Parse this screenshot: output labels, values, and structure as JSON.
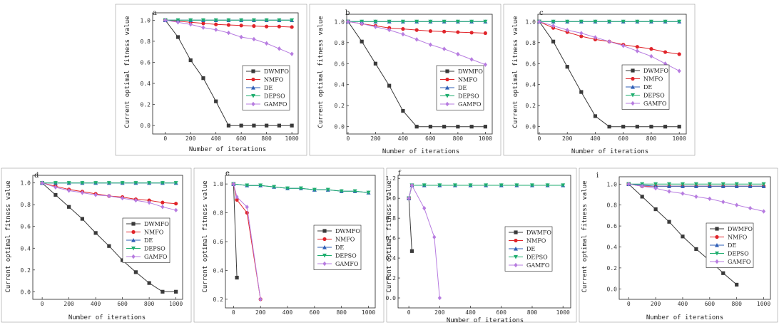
{
  "series_styles": [
    {
      "name": "DWMFO",
      "color": "#3a3a3a",
      "marker": "square"
    },
    {
      "name": "NMFO",
      "color": "#e0242a",
      "marker": "circle"
    },
    {
      "name": "DE",
      "color": "#2f5fb7",
      "marker": "triangle-up"
    },
    {
      "name": "DEPSO",
      "color": "#1fae6f",
      "marker": "triangle-down"
    },
    {
      "name": "GAMFO",
      "color": "#b77ce0",
      "marker": "diamond"
    }
  ],
  "chart_data": [
    {
      "type": "line",
      "label": "a",
      "xlabel": "Number of iterations",
      "ylabel": "Current optimal fitness value",
      "xlim": [
        -100,
        1050
      ],
      "ylim": [
        -0.08,
        1.07
      ],
      "xticks": [
        0,
        200,
        400,
        600,
        800,
        1000
      ],
      "yticks": [
        0.0,
        0.2,
        0.4,
        0.6,
        0.8,
        1.0
      ],
      "xtick_labels": [
        "0",
        "200",
        "400",
        "600",
        "800",
        "1000"
      ],
      "ytick_labels": [
        "0.0",
        "0.2",
        "0.4",
        "0.6",
        "0.8",
        "1.0"
      ],
      "legend_position": "center-right",
      "x": [
        0,
        100,
        200,
        300,
        400,
        500,
        600,
        700,
        800,
        900,
        1000
      ],
      "series": [
        {
          "name": "DWMFO",
          "values": [
            1.0,
            0.84,
            0.62,
            0.45,
            0.23,
            0.0,
            0.0,
            0.0,
            0.0,
            0.0,
            0.0
          ]
        },
        {
          "name": "NMFO",
          "values": [
            1.0,
            0.99,
            0.98,
            0.97,
            0.96,
            0.955,
            0.95,
            0.945,
            0.94,
            0.94,
            0.935
          ]
        },
        {
          "name": "DE",
          "values": [
            1.0,
            1.0,
            1.0,
            1.0,
            1.0,
            1.0,
            1.0,
            1.0,
            1.0,
            1.0,
            1.0
          ]
        },
        {
          "name": "DEPSO",
          "values": [
            1.0,
            1.0,
            1.0,
            1.0,
            1.0,
            1.0,
            1.0,
            1.0,
            1.0,
            1.0,
            1.0
          ]
        },
        {
          "name": "GAMFO",
          "values": [
            1.0,
            0.98,
            0.96,
            0.93,
            0.91,
            0.88,
            0.84,
            0.82,
            0.78,
            0.73,
            0.68
          ]
        }
      ]
    },
    {
      "type": "line",
      "label": "b",
      "xlabel": "Number of iterations",
      "ylabel": "Current optimal fitness value",
      "xlim": [
        -10,
        1050
      ],
      "ylim": [
        -0.07,
        1.07
      ],
      "xticks": [
        0,
        200,
        400,
        600,
        800,
        1000
      ],
      "yticks": [
        0.0,
        0.2,
        0.4,
        0.6,
        0.8,
        1.0
      ],
      "xtick_labels": [
        "0",
        "200",
        "400",
        "600",
        "800",
        "1000"
      ],
      "ytick_labels": [
        "0.0",
        "0.2",
        "0.4",
        "0.6",
        "0.8",
        "1.0"
      ],
      "legend_position": "center-right",
      "x": [
        0,
        100,
        200,
        300,
        400,
        500,
        600,
        700,
        800,
        900,
        1000
      ],
      "series": [
        {
          "name": "DWMFO",
          "values": [
            1.0,
            0.81,
            0.6,
            0.39,
            0.15,
            0.0,
            0.0,
            0.0,
            0.0,
            0.0,
            0.0
          ]
        },
        {
          "name": "NMFO",
          "values": [
            1.0,
            0.98,
            0.96,
            0.94,
            0.93,
            0.92,
            0.91,
            0.905,
            0.9,
            0.895,
            0.89
          ]
        },
        {
          "name": "DE",
          "values": [
            1.0,
            1.0,
            1.0,
            1.0,
            1.0,
            1.0,
            1.0,
            1.0,
            1.0,
            1.0,
            1.0
          ]
        },
        {
          "name": "DEPSO",
          "values": [
            1.0,
            1.0,
            1.0,
            1.0,
            1.0,
            1.0,
            1.0,
            1.0,
            1.0,
            1.0,
            1.0
          ]
        },
        {
          "name": "GAMFO",
          "values": [
            1.0,
            0.98,
            0.95,
            0.92,
            0.88,
            0.83,
            0.78,
            0.74,
            0.69,
            0.64,
            0.59
          ]
        }
      ]
    },
    {
      "type": "line",
      "label": "c",
      "xlabel": "Number of iterations",
      "ylabel": "Current optimal fitness value",
      "xlim": [
        -10,
        1050
      ],
      "ylim": [
        -0.07,
        1.07
      ],
      "xticks": [
        0,
        200,
        400,
        600,
        800,
        1000
      ],
      "yticks": [
        0.0,
        0.2,
        0.4,
        0.6,
        0.8,
        1.0
      ],
      "xtick_labels": [
        "0",
        "200",
        "400",
        "600",
        "800",
        "1000"
      ],
      "ytick_labels": [
        "0.0",
        "0.2",
        "0.4",
        "0.6",
        "0.8",
        "1.0"
      ],
      "legend_position": "center-right",
      "x": [
        0,
        100,
        200,
        300,
        400,
        500,
        600,
        700,
        800,
        900,
        1000
      ],
      "series": [
        {
          "name": "DWMFO",
          "values": [
            1.0,
            0.81,
            0.57,
            0.33,
            0.1,
            0.0,
            0.0,
            0.0,
            0.0,
            0.0,
            0.0
          ]
        },
        {
          "name": "NMFO",
          "values": [
            1.0,
            0.94,
            0.9,
            0.86,
            0.83,
            0.81,
            0.78,
            0.76,
            0.74,
            0.71,
            0.69
          ]
        },
        {
          "name": "DE",
          "values": [
            1.0,
            1.0,
            1.0,
            1.0,
            1.0,
            1.0,
            1.0,
            1.0,
            1.0,
            1.0,
            1.0
          ]
        },
        {
          "name": "DEPSO",
          "values": [
            1.0,
            1.0,
            1.0,
            1.0,
            1.0,
            1.0,
            1.0,
            1.0,
            1.0,
            1.0,
            1.0
          ]
        },
        {
          "name": "GAMFO",
          "values": [
            1.0,
            0.96,
            0.92,
            0.89,
            0.85,
            0.81,
            0.77,
            0.72,
            0.67,
            0.6,
            0.53
          ]
        }
      ]
    },
    {
      "type": "line",
      "label": "d",
      "xlabel": "Number of iterations",
      "ylabel": "Current optimal fitness value",
      "xlim": [
        -70,
        1050
      ],
      "ylim": [
        -0.07,
        1.07
      ],
      "xticks": [
        0,
        200,
        400,
        600,
        800,
        1000
      ],
      "yticks": [
        0.0,
        0.2,
        0.4,
        0.6,
        0.8,
        1.0
      ],
      "xtick_labels": [
        "0",
        "200",
        "400",
        "600",
        "800",
        "1000"
      ],
      "ytick_labels": [
        "0.0",
        "0.2",
        "0.4",
        "0.6",
        "0.8",
        "1.0"
      ],
      "legend_position": "bottom-right",
      "x": [
        0,
        100,
        200,
        300,
        400,
        500,
        600,
        700,
        800,
        900,
        1000
      ],
      "series": [
        {
          "name": "DWMFO",
          "values": [
            1.0,
            0.89,
            0.78,
            0.67,
            0.54,
            0.42,
            0.29,
            0.18,
            0.08,
            0.0,
            0.0
          ]
        },
        {
          "name": "NMFO",
          "values": [
            1.0,
            0.97,
            0.94,
            0.92,
            0.9,
            0.88,
            0.87,
            0.85,
            0.84,
            0.82,
            0.81
          ]
        },
        {
          "name": "DE",
          "values": [
            1.0,
            1.0,
            1.0,
            1.0,
            1.0,
            1.0,
            1.0,
            1.0,
            1.0,
            1.0,
            1.0
          ]
        },
        {
          "name": "DEPSO",
          "values": [
            1.0,
            1.0,
            1.0,
            1.0,
            1.0,
            1.0,
            1.0,
            1.0,
            1.0,
            1.0,
            1.0
          ]
        },
        {
          "name": "GAMFO",
          "values": [
            1.0,
            0.96,
            0.93,
            0.91,
            0.89,
            0.88,
            0.86,
            0.84,
            0.82,
            0.78,
            0.75
          ]
        }
      ]
    },
    {
      "type": "line",
      "label": "e",
      "xlabel": "",
      "ylabel": "Current optimal fitness value",
      "xlim": [
        -60,
        1050
      ],
      "ylim": [
        0.14,
        1.06
      ],
      "xticks": [
        0,
        200,
        400,
        600,
        800,
        1000
      ],
      "yticks": [
        0.2,
        0.4,
        0.6,
        0.8,
        1.0
      ],
      "xtick_labels": [
        "0",
        "200",
        "400",
        "600",
        "800",
        "1000"
      ],
      "ytick_labels": [
        "0.2",
        "0.4",
        "0.6",
        "0.8",
        "1.0"
      ],
      "legend_position": "right",
      "series": [
        {
          "name": "DWMFO",
          "x": [
            0,
            25
          ],
          "values": [
            1.0,
            0.35
          ]
        },
        {
          "name": "NMFO",
          "x": [
            0,
            25,
            100,
            200
          ],
          "values": [
            1.0,
            0.89,
            0.8,
            0.2
          ]
        },
        {
          "name": "DE",
          "x": [
            0,
            100,
            200,
            300,
            400,
            500,
            600,
            700,
            800,
            900,
            1000
          ],
          "values": [
            1.0,
            0.99,
            0.99,
            0.98,
            0.97,
            0.97,
            0.96,
            0.96,
            0.95,
            0.95,
            0.94
          ]
        },
        {
          "name": "DEPSO",
          "x": [
            0,
            100,
            200,
            300,
            400,
            500,
            600,
            700,
            800,
            900,
            1000
          ],
          "values": [
            1.0,
            0.99,
            0.99,
            0.98,
            0.97,
            0.97,
            0.96,
            0.96,
            0.95,
            0.95,
            0.94
          ]
        },
        {
          "name": "GAMFO",
          "x": [
            0,
            25,
            100,
            200
          ],
          "values": [
            1.0,
            0.91,
            0.84,
            0.2
          ]
        }
      ]
    },
    {
      "type": "line",
      "label": "f",
      "xlabel": "Number of iterations",
      "ylabel": "Current optimal fitness value",
      "xlim": [
        -70,
        1050
      ],
      "ylim": [
        -0.1,
        1.23
      ],
      "xticks": [
        0,
        200,
        400,
        600,
        800,
        1000
      ],
      "yticks": [
        0.0,
        0.2,
        0.4,
        0.6,
        0.8,
        1.0,
        1.2
      ],
      "xtick_labels": [
        "0",
        "200",
        "400",
        "600",
        "800",
        "1000"
      ],
      "ytick_labels": [
        "0.0",
        "0.2",
        "0.4",
        "0.6",
        "0.8",
        "1.0",
        "1.2"
      ],
      "legend_position": "right",
      "series": [
        {
          "name": "DWMFO",
          "x": [
            0,
            20
          ],
          "values": [
            1.0,
            0.47
          ]
        },
        {
          "name": "NMFO",
          "x": [
            0,
            20
          ],
          "values": [
            1.0,
            1.13
          ]
        },
        {
          "name": "DE",
          "x": [
            0,
            20,
            100,
            200,
            300,
            400,
            500,
            600,
            700,
            800,
            900,
            1000
          ],
          "values": [
            1.0,
            1.13,
            1.13,
            1.13,
            1.13,
            1.13,
            1.13,
            1.13,
            1.13,
            1.13,
            1.13,
            1.13
          ]
        },
        {
          "name": "DEPSO",
          "x": [
            0,
            20,
            100,
            200,
            300,
            400,
            500,
            600,
            700,
            800,
            900,
            1000
          ],
          "values": [
            1.0,
            1.13,
            1.13,
            1.13,
            1.13,
            1.13,
            1.13,
            1.13,
            1.13,
            1.13,
            1.13,
            1.13
          ]
        },
        {
          "name": "GAMFO",
          "x": [
            0,
            20,
            100,
            165,
            200
          ],
          "values": [
            1.0,
            1.13,
            0.9,
            0.61,
            0.0
          ]
        }
      ]
    },
    {
      "type": "line",
      "label": "i",
      "xlabel": "Number of iterations",
      "ylabel": "Current optimal fitness value",
      "xlim": [
        -70,
        1050
      ],
      "ylim": [
        -0.1,
        1.07
      ],
      "xticks": [
        0,
        200,
        400,
        600,
        800,
        1000
      ],
      "yticks": [
        0.0,
        0.2,
        0.4,
        0.6,
        0.8,
        1.0
      ],
      "xtick_labels": [
        "0",
        "200",
        "400",
        "600",
        "800",
        "1000"
      ],
      "ytick_labels": [
        "0.0",
        "0.2",
        "0.4",
        "0.6",
        "0.8",
        "1.0"
      ],
      "legend_position": "right",
      "series": [
        {
          "name": "DWMFO",
          "x": [
            0,
            100,
            200,
            300,
            400,
            500,
            600,
            700,
            800
          ],
          "values": [
            1.0,
            0.88,
            0.76,
            0.64,
            0.5,
            0.38,
            0.27,
            0.15,
            0.04
          ]
        },
        {
          "name": "NMFO",
          "x": [
            0,
            100,
            200,
            300,
            400,
            500,
            600,
            700,
            800,
            900,
            1000
          ],
          "values": [
            1.0,
            0.98,
            0.98,
            0.98,
            0.98,
            0.98,
            0.98,
            0.98,
            0.98,
            0.98,
            0.98
          ]
        },
        {
          "name": "DE",
          "x": [
            0,
            100,
            200,
            300,
            400,
            500,
            600,
            700,
            800,
            900,
            1000
          ],
          "values": [
            1.0,
            0.99,
            0.98,
            0.98,
            0.98,
            0.98,
            0.98,
            0.98,
            0.98,
            0.98,
            0.98
          ]
        },
        {
          "name": "DEPSO",
          "x": [
            0,
            100,
            200,
            300,
            400,
            500,
            600,
            700,
            800,
            900,
            1000
          ],
          "values": [
            1.0,
            1.0,
            1.0,
            1.0,
            1.0,
            1.0,
            1.0,
            1.0,
            1.0,
            1.0,
            1.0
          ]
        },
        {
          "name": "GAMFO",
          "x": [
            0,
            100,
            200,
            300,
            400,
            500,
            600,
            700,
            800,
            900,
            1000
          ],
          "values": [
            1.0,
            0.98,
            0.96,
            0.93,
            0.91,
            0.88,
            0.86,
            0.83,
            0.8,
            0.77,
            0.74
          ]
        }
      ]
    }
  ]
}
